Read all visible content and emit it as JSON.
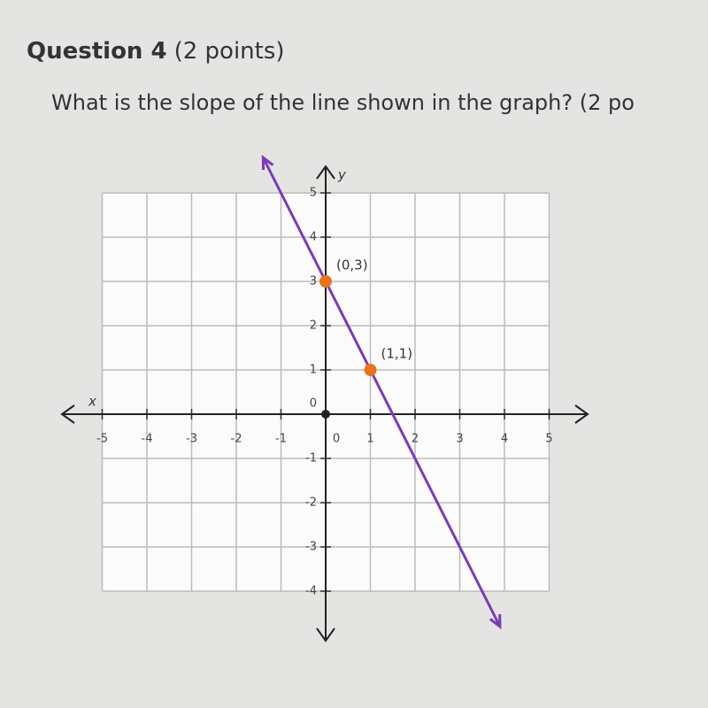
{
  "question": {
    "title": "Question 4",
    "points": "(2 points)",
    "text": "What is the slope of the line shown in the graph? (2 po"
  },
  "graph": {
    "type": "line",
    "x_label": "x",
    "y_label": "y",
    "xlim": [
      -5,
      5
    ],
    "ylim": [
      -4,
      5
    ],
    "xticks": [
      -5,
      -4,
      -3,
      -2,
      -1,
      0,
      1,
      2,
      3,
      4,
      5
    ],
    "yticks": [
      -4,
      -3,
      -2,
      -1,
      0,
      1,
      2,
      3,
      4,
      5
    ],
    "grid": true,
    "line_color": "#7a3bb8",
    "point_color": "#e8731a",
    "points": [
      {
        "x": 0,
        "y": 3,
        "label": "(0,3)"
      },
      {
        "x": 1,
        "y": 1,
        "label": "(1,1)"
      }
    ]
  }
}
